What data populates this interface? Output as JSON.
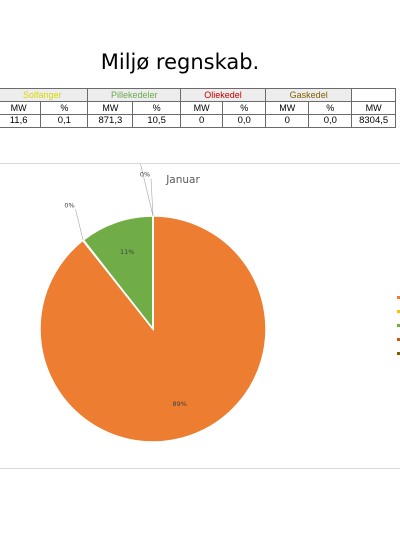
{
  "page": {
    "title": "Miljø regnskab."
  },
  "table": {
    "groups": [
      {
        "label": "Solfanger",
        "color": "#d9d900"
      },
      {
        "label": "Pillekedeler",
        "color": "#6aa84f"
      },
      {
        "label": "Oliekedel",
        "color": "#c00000"
      },
      {
        "label": "Gaskedel",
        "color": "#7f6000"
      },
      {
        "label": "",
        "color": "#000000"
      }
    ],
    "subheaders": [
      "MW",
      "%",
      "MW",
      "%",
      "MW",
      "%",
      "MW",
      "%",
      "MW"
    ],
    "row": [
      "11,6",
      "0,1",
      "871,3",
      "10,5",
      "0",
      "0,0",
      "0",
      "0,0",
      "8304,5"
    ]
  },
  "chart_data": {
    "type": "pie",
    "title": "Januar",
    "slices": [
      {
        "value": 88.8,
        "label": "89%",
        "color": "#ed7d31"
      },
      {
        "value": 0.1,
        "label": "0%",
        "color": "#ffc000"
      },
      {
        "value": 10.5,
        "label": "11%",
        "color": "#70ad47"
      },
      {
        "value": 0.0,
        "label": "0%",
        "color": "#c55a11"
      },
      {
        "value": 0.0,
        "label": "0%",
        "color": "#7f6000"
      }
    ],
    "legend_position": "right"
  }
}
